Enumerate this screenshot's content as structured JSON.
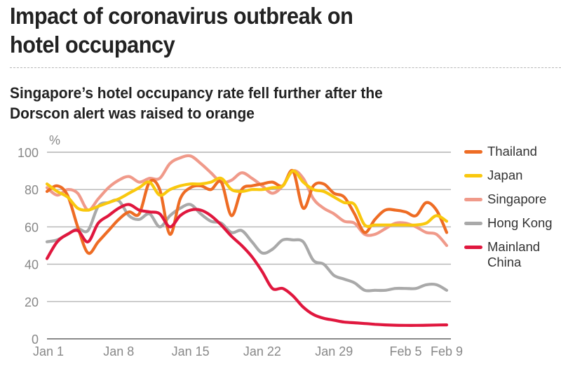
{
  "header": {
    "title": "Impact of coronavirus outbreak on hotel occupancy",
    "subtitle": "Singapore’s hotel occupancy rate fell further after the Dorscon alert was raised to orange"
  },
  "chart_data": {
    "type": "line",
    "title": "Singapore’s hotel occupancy rate fell further after the Dorscon alert was raised to orange",
    "xlabel": "",
    "ylabel": "%",
    "ylim": [
      0,
      100
    ],
    "yticks": [
      0,
      20,
      40,
      60,
      80,
      100
    ],
    "ytick_labels": [
      "0",
      "20",
      "40",
      "60",
      "80",
      "100"
    ],
    "xtick_labels": [
      "Jan 1",
      "Jan 8",
      "Jan 15",
      "Jan 22",
      "Jan 29",
      "Feb 5",
      "Feb 9"
    ],
    "xtick_days": [
      0,
      7,
      14,
      21,
      28,
      35,
      39
    ],
    "grid": true,
    "legend_position": "right",
    "x": [
      "Jan 1",
      "Jan 2",
      "Jan 3",
      "Jan 4",
      "Jan 5",
      "Jan 6",
      "Jan 7",
      "Jan 8",
      "Jan 9",
      "Jan 10",
      "Jan 11",
      "Jan 12",
      "Jan 13",
      "Jan 14",
      "Jan 15",
      "Jan 16",
      "Jan 17",
      "Jan 18",
      "Jan 19",
      "Jan 20",
      "Jan 21",
      "Jan 22",
      "Jan 23",
      "Jan 24",
      "Jan 25",
      "Jan 26",
      "Jan 27",
      "Jan 28",
      "Jan 29",
      "Jan 30",
      "Jan 31",
      "Feb 1",
      "Feb 2",
      "Feb 3",
      "Feb 4",
      "Feb 5",
      "Feb 6",
      "Feb 7",
      "Feb 8",
      "Feb 9"
    ],
    "series": [
      {
        "name": "Thailand",
        "color": "#ee6c24",
        "values": [
          79,
          82,
          77,
          60,
          46,
          52,
          58,
          64,
          68,
          67,
          84,
          80,
          56,
          75,
          81,
          82,
          80,
          84,
          66,
          80,
          82,
          83,
          84,
          82,
          90,
          70,
          82,
          83,
          78,
          76,
          67,
          57,
          64,
          69,
          69,
          68,
          66,
          73,
          69,
          57
        ]
      },
      {
        "name": "Japan",
        "color": "#f9c80e",
        "values": [
          83,
          79,
          76,
          70,
          69,
          71,
          73,
          75,
          78,
          81,
          84,
          77,
          80,
          82,
          83,
          83,
          84,
          86,
          80,
          79,
          80,
          80,
          81,
          82,
          90,
          84,
          80,
          79,
          76,
          73,
          72,
          61,
          61,
          61,
          61,
          61,
          61,
          62,
          66,
          63
        ]
      },
      {
        "name": "Singapore",
        "color": "#f09a8a",
        "values": [
          81,
          77,
          80,
          78,
          69,
          75,
          81,
          85,
          87,
          84,
          86,
          86,
          94,
          97,
          98,
          94,
          89,
          84,
          85,
          89,
          86,
          82,
          78,
          82,
          90,
          86,
          75,
          70,
          67,
          63,
          62,
          56,
          56,
          59,
          62,
          62,
          60,
          57,
          56,
          50
        ]
      },
      {
        "name": "Hong Kong",
        "color": "#a9a9a9",
        "values": [
          52,
          53,
          56,
          59,
          58,
          71,
          73,
          74,
          66,
          64,
          67,
          60,
          66,
          70,
          72,
          67,
          63,
          62,
          57,
          58,
          52,
          46,
          48,
          53,
          53,
          52,
          42,
          40,
          34,
          32,
          30,
          26,
          26,
          26,
          27,
          27,
          27,
          29,
          29,
          26
        ]
      },
      {
        "name": "Mainland China",
        "color": "#e0173e",
        "values": [
          43,
          52,
          56,
          58,
          52,
          62,
          66,
          70,
          72,
          69,
          68,
          67,
          60,
          66,
          69,
          69,
          66,
          61,
          55,
          50,
          44,
          36,
          27,
          27,
          23,
          17,
          13,
          11,
          10,
          9,
          8.6,
          8.2,
          7.8,
          7.5,
          7.3,
          7.2,
          7.2,
          7.3,
          7.4,
          7.5
        ]
      }
    ]
  },
  "legend": [
    {
      "label": "Thailand",
      "color": "#ee6c24"
    },
    {
      "label": "Japan",
      "color": "#f9c80e"
    },
    {
      "label": "Singapore",
      "color": "#f09a8a"
    },
    {
      "label": "Hong Kong",
      "color": "#a9a9a9"
    },
    {
      "label": "Mainland\nChina",
      "color": "#e0173e"
    }
  ]
}
